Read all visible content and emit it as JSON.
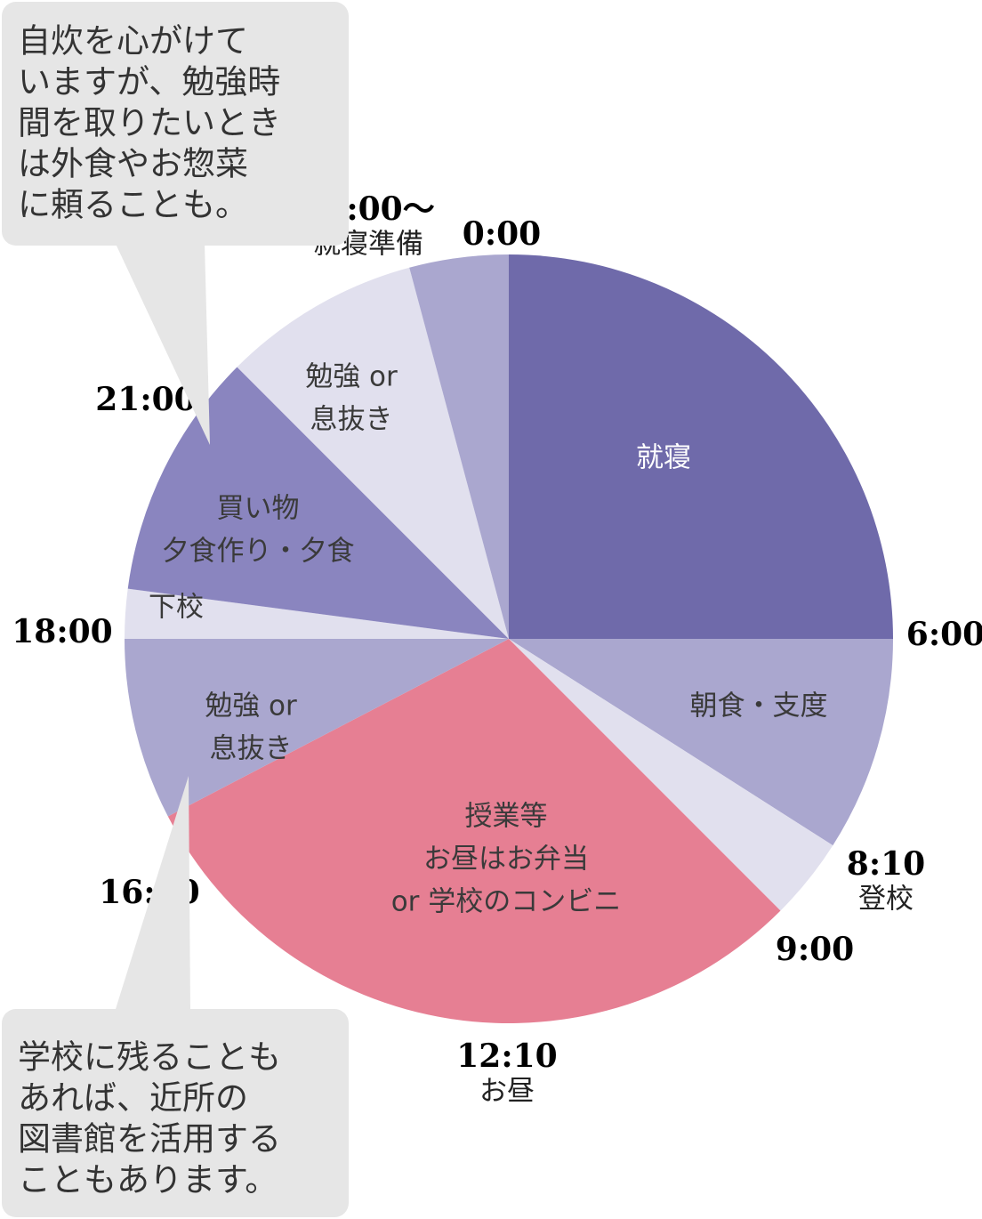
{
  "chart_data": {
    "type": "pie",
    "start_angle": "top",
    "direction": "clockwise",
    "slices": [
      {
        "label": [
          "就寝"
        ],
        "start": "0:00",
        "end": "6:00",
        "hours": 6.0,
        "color": "#6f6aaa",
        "light_text": true
      },
      {
        "label": [
          "朝食・支度"
        ],
        "start": "6:00",
        "end": "8:10",
        "hours": 2.1667,
        "color": "#aaa7cf"
      },
      {
        "label": [],
        "start": "8:10",
        "end": "9:00",
        "hours": 0.8333,
        "color": "#e1e0ee"
      },
      {
        "label": [
          "授業等",
          "お昼はお弁当",
          "or 学校のコンビニ"
        ],
        "start": "9:00",
        "end": "16:10",
        "hours": 7.1667,
        "color": "#e67f93"
      },
      {
        "label": [
          "勉強 or",
          "息抜き"
        ],
        "start": "16:10",
        "end": "18:00",
        "hours": 1.8333,
        "color": "#aaa7cf"
      },
      {
        "label": [
          "下校"
        ],
        "start": "18:00",
        "end": "18:30",
        "hours": 0.5,
        "color": "#e1e0ee"
      },
      {
        "label": [
          "買い物",
          "夕食作り・夕食"
        ],
        "start": "18:30",
        "end": "21:00",
        "hours": 2.5,
        "color": "#8a85bf"
      },
      {
        "label": [
          "勉強 or",
          "息抜き"
        ],
        "start": "21:00",
        "end": "23:00",
        "hours": 2.0,
        "color": "#e1e0ee"
      },
      {
        "label": [],
        "start": "23:00",
        "end": "24:00",
        "hours": 1.0,
        "color": "#aaa7cf"
      }
    ],
    "time_labels": [
      {
        "time": "0:00",
        "sub": ""
      },
      {
        "time": "6:00",
        "sub": ""
      },
      {
        "time": "8:10",
        "sub": "登校"
      },
      {
        "time": "9:00",
        "sub": ""
      },
      {
        "time": "12:10",
        "sub": "お昼"
      },
      {
        "time": "16:10",
        "sub": ""
      },
      {
        "time": "18:00",
        "sub": ""
      },
      {
        "time": "21:00",
        "sub": ""
      },
      {
        "time": "23:00〜",
        "sub": "就寝準備"
      }
    ]
  },
  "callouts": [
    {
      "lines": [
        "自炊を心がけて",
        "いますが、勉強時",
        "間を取りたいとき",
        "は外食やお惣菜",
        "に頼ることも。"
      ]
    },
    {
      "lines": [
        "学校に残ることも",
        "あれば、近所の",
        "図書館を活用する",
        "こともあります。"
      ]
    }
  ],
  "colors": {
    "callout_bg": "#e6e6e6",
    "callout_text": "#333333"
  }
}
